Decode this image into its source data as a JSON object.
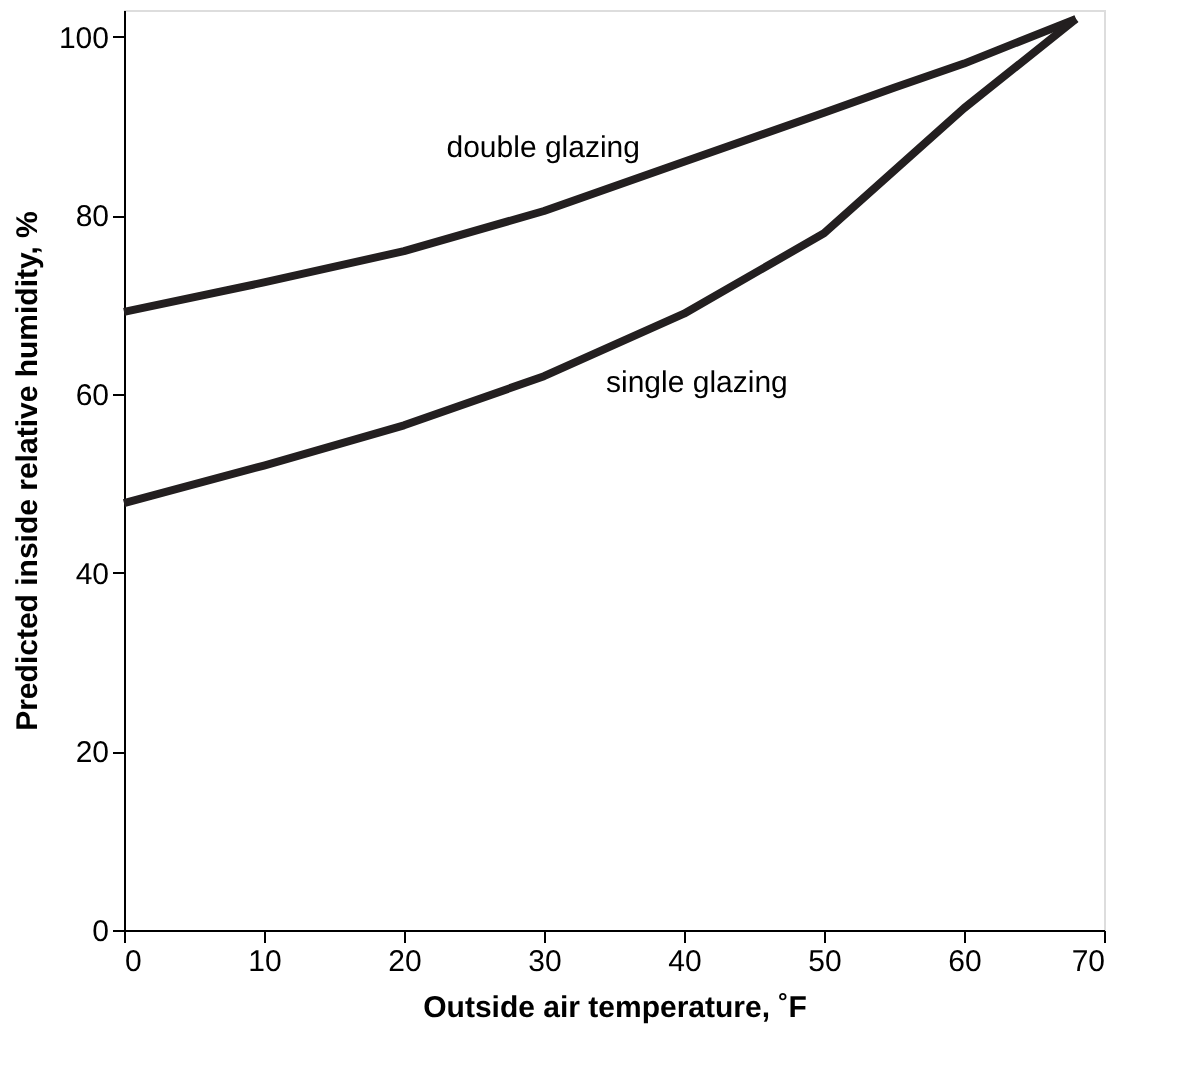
{
  "chart_data": {
    "type": "line",
    "xlabel": "Outside air temperature, ˚F",
    "ylabel": "Predicted inside relative humidity, %",
    "x": [
      0,
      10,
      20,
      30,
      40,
      50,
      55,
      60,
      68
    ],
    "series": [
      {
        "color": "#231f20",
        "values": [
          69.2,
          72.5,
          76,
          80.5,
          86,
          91.5,
          94.3,
          97,
          102
        ]
      },
      {
        "color": "#231f20",
        "values": [
          47.8,
          52,
          56.5,
          62,
          69,
          78,
          85,
          92,
          102
        ]
      }
    ],
    "xlim": [
      0,
      70
    ],
    "ylim": [
      0,
      103
    ],
    "xticks": [
      0,
      10,
      20,
      30,
      40,
      50,
      60,
      70
    ],
    "yticks": [
      0,
      20,
      40,
      60,
      80,
      100
    ],
    "grid": false,
    "marker": "none",
    "line_style": "solid",
    "annotations": [
      {
        "text": "double glazing",
        "x": 38,
        "y": 85
      },
      {
        "text": "single glazing",
        "x": 33,
        "y": 64
      }
    ]
  }
}
